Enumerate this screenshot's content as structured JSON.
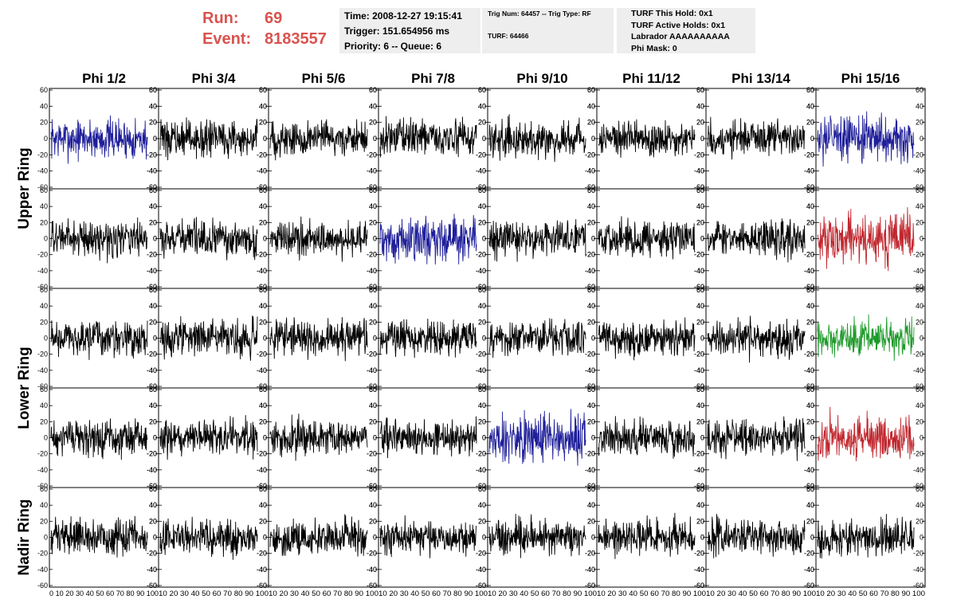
{
  "header": {
    "run_label": "Run:",
    "run_value": "69",
    "event_label": "Event:",
    "event_value": "8183557",
    "time": "Time: 2008-12-27 19:15:41",
    "trigger": "Trigger: 151.654956 ms",
    "priority": "Priority: 6 -- Queue: 6",
    "trig_num": "Trig Num: 64457 -- Trig Type: RF",
    "turf": "TURF: 64466",
    "turf_hold": "TURF This Hold: 0x1",
    "turf_active": "TURF Active Holds: 0x1",
    "labrador": "Labrador AAAAAAAAAA",
    "phi_mask": "Phi Mask: 0"
  },
  "chart_data": {
    "type": "line",
    "title": "",
    "columns": [
      "Phi 1/2",
      "Phi 3/4",
      "Phi 5/6",
      "Phi 7/8",
      "Phi 9/10",
      "Phi 11/12",
      "Phi 13/14",
      "Phi 15/16"
    ],
    "ring_labels": [
      "Upper Ring",
      "Lower Ring",
      "Nadir Ring"
    ],
    "rows": 5,
    "ylim": [
      -60,
      60
    ],
    "xlim": [
      0,
      100
    ],
    "y_ticks": [
      60,
      40,
      20,
      0,
      -20,
      -40,
      -60
    ],
    "x_tick_labels": [
      "0",
      "10",
      "20",
      "30",
      "40",
      "50",
      "60",
      "70",
      "80",
      "90",
      "100"
    ],
    "x_tick_strings": [
      "0 10 20 30 40 50 60 70 80 90 100",
      "10 20 30 40 50 60 70 80 90 100"
    ],
    "n_samples": 256,
    "series_colors": {
      "default": "#000000",
      "blue": "#1f1f9a",
      "red": "#c0262d",
      "green": "#1e9a2a"
    },
    "highlighted_panels": [
      {
        "row": 0,
        "col": 0,
        "color": "blue",
        "amplitude": 18
      },
      {
        "row": 0,
        "col": 7,
        "color": "blue",
        "amplitude": 20
      },
      {
        "row": 1,
        "col": 3,
        "color": "blue",
        "amplitude": 20
      },
      {
        "row": 1,
        "col": 7,
        "color": "red",
        "amplitude": 22
      },
      {
        "row": 2,
        "col": 7,
        "color": "green",
        "amplitude": 16
      },
      {
        "row": 3,
        "col": 4,
        "color": "blue",
        "amplitude": 22
      },
      {
        "row": 3,
        "col": 7,
        "color": "red",
        "amplitude": 20
      }
    ],
    "default_amplitude": 16
  }
}
